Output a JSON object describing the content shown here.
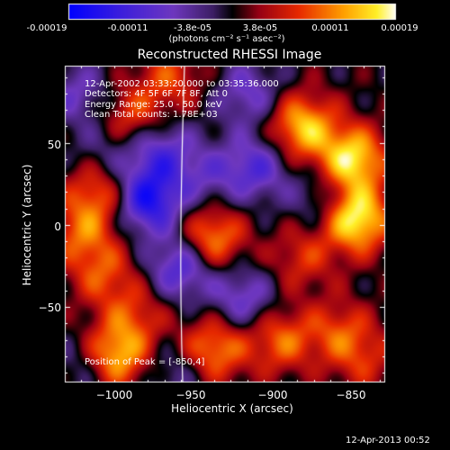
{
  "colorbar": {
    "tick_labels": [
      "-0.00019",
      "-0.00011",
      "-3.8e-05",
      "3.8e-05",
      "0.00011",
      "0.00019"
    ],
    "unit_label": "(photons cm⁻² s⁻¹ asec⁻²)"
  },
  "chart_data": {
    "type": "heatmap",
    "title": "Reconstructed RHESSI Image",
    "xlabel": "Heliocentric X (arcsec)",
    "ylabel": "Heliocentric Y (arcsec)",
    "xlim": [
      -1025,
      -832
    ],
    "ylim": [
      -96,
      97
    ],
    "x_ticks": [
      -1000,
      -950,
      -900,
      -850
    ],
    "x_tick_labels": [
      "−1000",
      "−950",
      "−900",
      "−850"
    ],
    "y_ticks": [
      50,
      0,
      -50
    ],
    "y_tick_labels": [
      "50",
      "0",
      "−50"
    ],
    "value_range": [
      -0.00019,
      0.00019
    ],
    "colormap": "blue-purple-black-red-orange-yellow-white",
    "limb_line": true,
    "sources": [
      {
        "x": -850,
        "y": 4,
        "value": 0.00019
      },
      {
        "x": -852,
        "y": 40,
        "value": 0.00017
      },
      {
        "x": -882,
        "y": 60,
        "value": 0.00015
      },
      {
        "x": -937,
        "y": -8,
        "value": 0.00013
      },
      {
        "x": -995,
        "y": -80,
        "value": 0.00016
      },
      {
        "x": -935,
        "y": -75,
        "value": 0.00012
      },
      {
        "x": -895,
        "y": -70,
        "value": 0.0001
      },
      {
        "x": -1005,
        "y": 20,
        "value": 0.0001
      },
      {
        "x": -1015,
        "y": -5,
        "value": 9e-05
      },
      {
        "x": -1002,
        "y": -30,
        "value": 8e-05
      },
      {
        "x": -985,
        "y": 65,
        "value": 9e-05
      },
      {
        "x": -882,
        "y": -20,
        "value": 7e-05
      },
      {
        "x": -962,
        "y": 90,
        "value": 8e-05
      },
      {
        "x": -983,
        "y": -55,
        "value": 7e-05
      },
      {
        "x": -860,
        "y": -65,
        "value": 8e-05
      },
      {
        "x": -845,
        "y": -82,
        "value": 6e-05
      },
      {
        "x": -975,
        "y": 15,
        "value": -0.00016
      },
      {
        "x": -955,
        "y": -25,
        "value": -0.00012
      },
      {
        "x": -968,
        "y": 45,
        "value": -0.0001
      },
      {
        "x": -910,
        "y": 35,
        "value": -0.0001
      },
      {
        "x": -918,
        "y": -45,
        "value": -9e-05
      },
      {
        "x": -1018,
        "y": 80,
        "value": -7e-05
      },
      {
        "x": -915,
        "y": 80,
        "value": -8e-05
      },
      {
        "x": -940,
        "y": 30,
        "value": -6e-05
      },
      {
        "x": -870,
        "y": 15,
        "value": -6e-05
      },
      {
        "x": -1000,
        "y": 45,
        "value": -5e-05
      },
      {
        "x": -960,
        "y": -90,
        "value": -5e-05
      },
      {
        "x": -1010,
        "y": -85,
        "value": -6e-05
      }
    ]
  },
  "annotations": {
    "time_range": "12-Apr-2002 03:33:20.000 to 03:35:36.000",
    "detectors": "Detectors: 4F 5F 6F 7F 8F, Att 0",
    "energy": "Energy Range: 25.0 - 50.0 keV",
    "clean": "Clean     Total counts: 1.78E+03",
    "peak": "Position of Peak = [-850,4]"
  },
  "timestamp": "12-Apr-2013 00:52"
}
